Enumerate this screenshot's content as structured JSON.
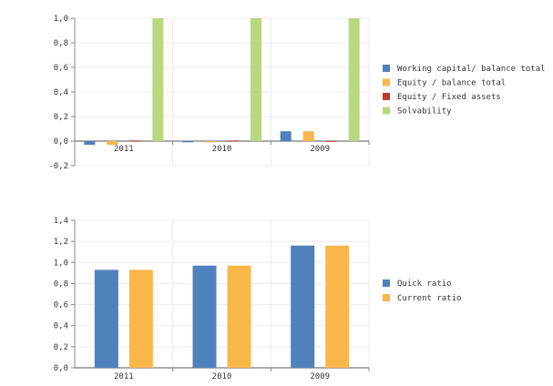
{
  "chart_data": [
    {
      "type": "bar",
      "categories": [
        "2011",
        "2010",
        "2009"
      ],
      "ylim": [
        -0.2,
        1.0
      ],
      "yticks": [
        "1,0",
        "0,8",
        "0,6",
        "0,4",
        "0,2",
        "0,0",
        "-0,2"
      ],
      "grid": true,
      "legend_position": "right",
      "series": [
        {
          "name": "Working capital/ balance total",
          "color": "#4f81bd",
          "values": [
            -0.03,
            -0.01,
            0.08
          ]
        },
        {
          "name": "Equity / balance total",
          "color": "#f9b74a",
          "values": [
            -0.03,
            -0.01,
            0.08
          ]
        },
        {
          "name": "Equity / Fixed assets",
          "color": "#c0392b",
          "values": [
            0.005,
            0.005,
            0.0
          ]
        },
        {
          "name": "Solvability",
          "color": "#b8d77e",
          "values": [
            1.0,
            1.0,
            1.0
          ]
        }
      ]
    },
    {
      "type": "bar",
      "categories": [
        "2011",
        "2010",
        "2009"
      ],
      "ylim": [
        0.0,
        1.4
      ],
      "yticks": [
        "1,4",
        "1,2",
        "1,0",
        "0,8",
        "0,6",
        "0,4",
        "0,2",
        "0,0"
      ],
      "grid": true,
      "legend_position": "right",
      "series": [
        {
          "name": "Quick ratio",
          "color": "#4f81bd",
          "values": [
            0.93,
            0.97,
            1.16
          ]
        },
        {
          "name": "Current ratio",
          "color": "#f9b74a",
          "values": [
            0.93,
            0.97,
            1.16
          ]
        }
      ]
    }
  ]
}
